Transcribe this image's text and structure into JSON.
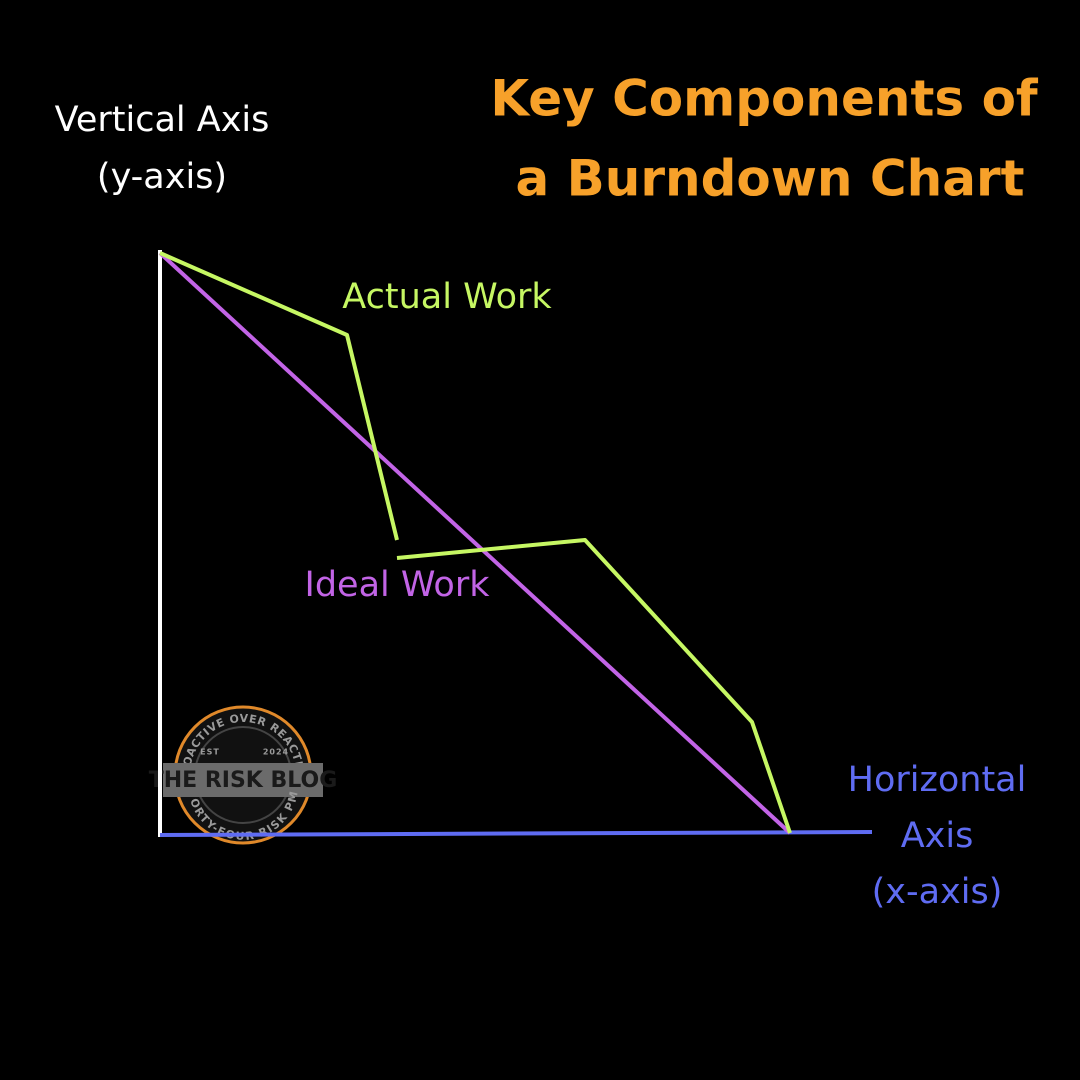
{
  "title": {
    "lines": [
      "Key Components of",
      "a Burndown Chart"
    ]
  },
  "vertical_axis": {
    "lines": [
      "Vertical Axis",
      "(y-axis)"
    ]
  },
  "horizontal_axis": {
    "lines": [
      "Horizontal",
      "Axis",
      "(x-axis)"
    ]
  },
  "series_labels": {
    "actual": "Actual Work",
    "ideal": "Ideal Work"
  },
  "logo": {
    "top_arc": "PROACTIVE OVER REACTIVE",
    "name": "THE RISK BLOG",
    "bottom_arc": "FORTY-FOUR RISK PM",
    "est": "EST",
    "year": "2024"
  }
}
